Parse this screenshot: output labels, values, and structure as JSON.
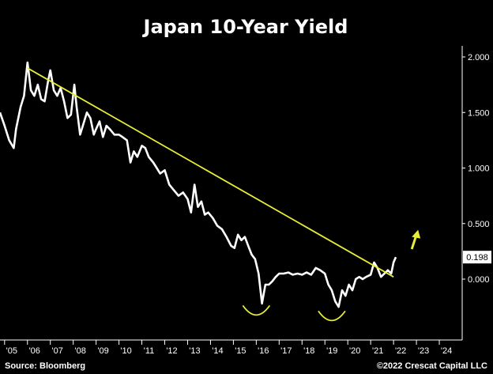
{
  "chart_data": {
    "type": "line",
    "title": "Japan 10-Year Yield",
    "source": "Source: Bloomberg",
    "copyright": "©2022 Crescat Capital LLC",
    "x_tick_labels": [
      "'05",
      "'06",
      "'07",
      "'08",
      "'09",
      "'10",
      "'11",
      "'12",
      "'13",
      "'14",
      "'15",
      "'16",
      "'17",
      "'18",
      "'19",
      "'20",
      "'21",
      "'22",
      "'23",
      "'24"
    ],
    "y_tick_labels": [
      "2.000",
      "1.500",
      "1.000",
      "0.500",
      "0.000"
    ],
    "y_ticks": [
      2.0,
      1.5,
      1.0,
      0.5,
      0.0
    ],
    "xlim": [
      2004.8,
      2025.0
    ],
    "ylim": [
      -0.35,
      2.1
    ],
    "last_value_label": "0.198",
    "last_value": 0.198,
    "colors": {
      "background": "#000000",
      "series": "#ffffff",
      "trendline": "#e6ec3a",
      "axis": "#ffffff"
    },
    "series": [
      {
        "x": [
          2004.8,
          2005.0,
          2005.2,
          2005.4,
          2005.5,
          2005.7,
          2005.85,
          2006.0,
          2006.15,
          2006.3,
          2006.45,
          2006.6,
          2006.75,
          2006.9,
          2007.0,
          2007.15,
          2007.3,
          2007.45,
          2007.6,
          2007.75,
          2007.9,
          2008.05,
          2008.15,
          2008.3,
          2008.45,
          2008.6,
          2008.75,
          2008.9,
          2009.0,
          2009.15,
          2009.3,
          2009.45,
          2009.6,
          2009.8,
          2010.0,
          2010.15,
          2010.35,
          2010.5,
          2010.65,
          2010.8,
          2011.0,
          2011.15,
          2011.3,
          2011.5,
          2011.65,
          2011.8,
          2012.0,
          2012.2,
          2012.4,
          2012.6,
          2012.8,
          2013.0,
          2013.15,
          2013.3,
          2013.45,
          2013.6,
          2013.75,
          2013.9,
          2014.1,
          2014.3,
          2014.5,
          2014.7,
          2014.9,
          2015.05,
          2015.2,
          2015.35,
          2015.5,
          2015.65,
          2015.8,
          2015.95,
          2016.1,
          2016.25,
          2016.4,
          2016.55,
          2016.7,
          2016.85,
          2017.0,
          2017.2,
          2017.4,
          2017.6,
          2017.8,
          2018.0,
          2018.2,
          2018.4,
          2018.6,
          2018.8,
          2019.0,
          2019.15,
          2019.3,
          2019.45,
          2019.6,
          2019.75,
          2019.9,
          2020.05,
          2020.2,
          2020.35,
          2020.5,
          2020.65,
          2020.8,
          2021.0,
          2021.15,
          2021.3,
          2021.45,
          2021.6,
          2021.75,
          2021.9,
          2022.0,
          2022.1
        ],
        "y": [
          1.5,
          1.38,
          1.25,
          1.18,
          1.35,
          1.55,
          1.65,
          1.95,
          1.7,
          1.65,
          1.75,
          1.62,
          1.6,
          1.78,
          1.88,
          1.7,
          1.65,
          1.72,
          1.6,
          1.45,
          1.48,
          1.75,
          1.55,
          1.3,
          1.4,
          1.5,
          1.45,
          1.3,
          1.35,
          1.42,
          1.28,
          1.38,
          1.35,
          1.3,
          1.3,
          1.28,
          1.25,
          1.05,
          1.15,
          1.1,
          1.2,
          1.18,
          1.1,
          1.05,
          1.0,
          0.95,
          0.98,
          0.85,
          0.8,
          0.75,
          0.78,
          0.72,
          0.6,
          0.85,
          0.65,
          0.7,
          0.58,
          0.6,
          0.55,
          0.48,
          0.45,
          0.38,
          0.3,
          0.28,
          0.4,
          0.35,
          0.38,
          0.3,
          0.22,
          0.18,
          0.05,
          -0.22,
          -0.05,
          -0.05,
          -0.02,
          0.02,
          0.05,
          0.05,
          0.06,
          0.04,
          0.05,
          0.04,
          0.06,
          0.04,
          0.1,
          0.08,
          0.05,
          -0.05,
          -0.1,
          -0.2,
          -0.25,
          -0.1,
          -0.15,
          -0.05,
          -0.1,
          0.0,
          0.02,
          0.0,
          0.02,
          0.04,
          0.15,
          0.1,
          0.02,
          0.05,
          0.08,
          0.05,
          0.15,
          0.198
        ]
      }
    ],
    "trendline": {
      "x": [
        2006.0,
        2022.0
      ],
      "y": [
        1.9,
        0.02
      ]
    },
    "annotations": [
      {
        "type": "curve",
        "center_x": 2016.0,
        "y": -0.28
      },
      {
        "type": "curve",
        "center_x": 2019.3,
        "y": -0.33
      },
      {
        "type": "arrow",
        "x": 2022.9,
        "y_from": 0.27,
        "y_to": 0.43
      }
    ]
  }
}
